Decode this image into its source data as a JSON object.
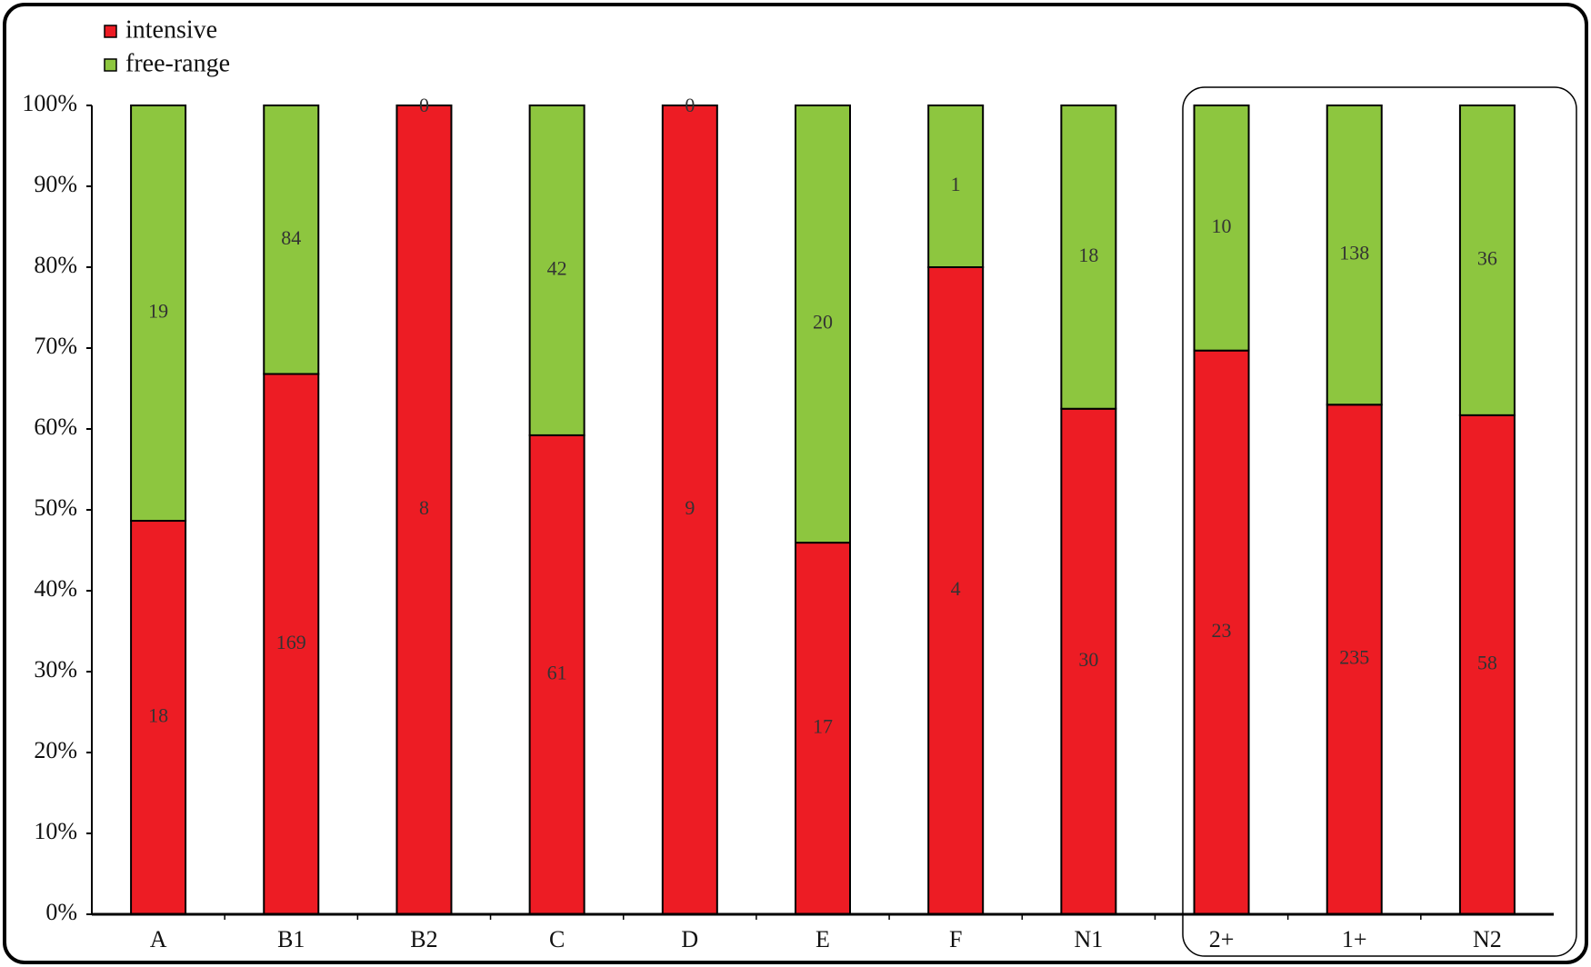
{
  "chart_data": {
    "type": "stacked_percent_bar",
    "categories": [
      "A",
      "B1",
      "B2",
      "C",
      "D",
      "E",
      "F",
      "N1",
      "2+",
      "1+",
      "N2"
    ],
    "series": [
      {
        "name": "intensive",
        "color": "#ed1c24",
        "values": [
          18,
          169,
          8,
          61,
          9,
          17,
          4,
          30,
          23,
          235,
          58
        ]
      },
      {
        "name": "free-range",
        "color": "#8dc63f",
        "values": [
          19,
          84,
          0,
          42,
          0,
          20,
          1,
          18,
          10,
          138,
          36
        ]
      }
    ],
    "ylim": [
      0,
      100
    ],
    "yticks": [
      {
        "value": 0,
        "label": "0%"
      },
      {
        "value": 10,
        "label": "10%"
      },
      {
        "value": 20,
        "label": "20%"
      },
      {
        "value": 30,
        "label": "30%"
      },
      {
        "value": 40,
        "label": "40%"
      },
      {
        "value": 50,
        "label": "50%"
      },
      {
        "value": 60,
        "label": "60%"
      },
      {
        "value": 70,
        "label": "70%"
      },
      {
        "value": 80,
        "label": "80%"
      },
      {
        "value": 90,
        "label": "90%"
      },
      {
        "value": 100,
        "label": "100%"
      }
    ],
    "legend": "top-left"
  }
}
